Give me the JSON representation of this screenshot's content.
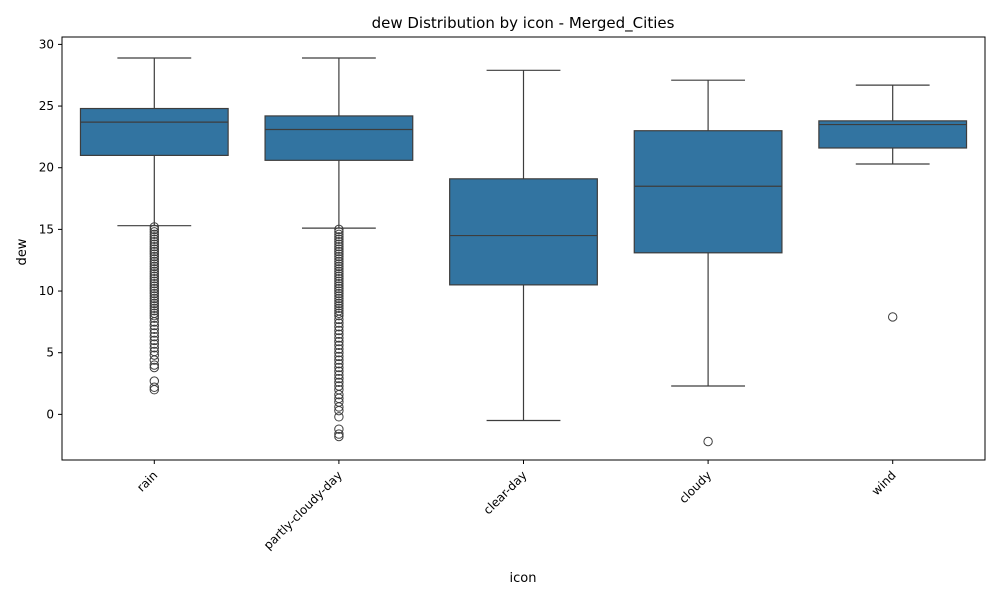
{
  "chart_data": {
    "type": "box",
    "title": "dew Distribution by icon - Merged_Cities",
    "xlabel": "icon",
    "ylabel": "dew",
    "ylim": [
      -3.7,
      30.6
    ],
    "yticks": [
      0,
      5,
      10,
      15,
      20,
      25,
      30
    ],
    "grid": false,
    "legend": "none",
    "colors": {
      "box_fill": "#3274a1",
      "line": "#3d3d3d",
      "axis": "#000000"
    },
    "categories": [
      "rain",
      "partly-cloudy-day",
      "clear-day",
      "cloudy",
      "wind"
    ],
    "boxes": [
      {
        "category": "rain",
        "whisker_low": 15.3,
        "q1": 21.0,
        "median": 23.7,
        "q3": 24.8,
        "whisker_high": 28.9,
        "outliers": [
          15.2,
          15.0,
          14.8,
          14.6,
          14.4,
          14.2,
          14.0,
          13.8,
          13.6,
          13.4,
          13.2,
          13.0,
          12.8,
          12.6,
          12.4,
          12.2,
          12.0,
          11.8,
          11.6,
          11.4,
          11.2,
          11.0,
          10.8,
          10.6,
          10.4,
          10.2,
          10.0,
          9.8,
          9.6,
          9.4,
          9.2,
          9.0,
          8.8,
          8.6,
          8.4,
          8.2,
          8.0,
          7.8,
          7.5,
          7.2,
          6.9,
          6.6,
          6.3,
          6.0,
          5.7,
          5.4,
          5.1,
          4.8,
          4.4,
          4.0,
          3.8,
          2.7,
          2.2,
          2.0
        ]
      },
      {
        "category": "partly-cloudy-day",
        "whisker_low": 15.1,
        "q1": 20.6,
        "median": 23.1,
        "q3": 24.2,
        "whisker_high": 28.9,
        "outliers": [
          15.0,
          14.8,
          14.6,
          14.4,
          14.2,
          14.0,
          13.8,
          13.6,
          13.4,
          13.2,
          13.0,
          12.8,
          12.6,
          12.4,
          12.2,
          12.0,
          11.8,
          11.6,
          11.4,
          11.2,
          11.0,
          10.8,
          10.6,
          10.4,
          10.2,
          10.0,
          9.8,
          9.6,
          9.4,
          9.2,
          9.0,
          8.8,
          8.6,
          8.4,
          8.2,
          8.0,
          7.7,
          7.4,
          7.1,
          6.8,
          6.5,
          6.2,
          5.9,
          5.6,
          5.3,
          5.0,
          4.7,
          4.4,
          4.1,
          3.8,
          3.5,
          3.2,
          2.9,
          2.6,
          2.3,
          2.0,
          1.6,
          1.3,
          1.0,
          0.6,
          0.3,
          -0.2,
          -1.2,
          -1.6,
          -1.8
        ]
      },
      {
        "category": "clear-day",
        "whisker_low": -0.5,
        "q1": 10.5,
        "median": 14.5,
        "q3": 19.1,
        "whisker_high": 27.9,
        "outliers": []
      },
      {
        "category": "cloudy",
        "whisker_low": 2.3,
        "q1": 13.1,
        "median": 18.5,
        "q3": 23.0,
        "whisker_high": 27.1,
        "outliers": [
          -2.2
        ]
      },
      {
        "category": "wind",
        "whisker_low": 20.3,
        "q1": 21.6,
        "median": 23.5,
        "q3": 23.8,
        "whisker_high": 26.7,
        "outliers": [
          7.9
        ]
      }
    ]
  }
}
